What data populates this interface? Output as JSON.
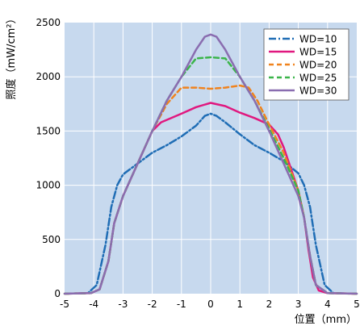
{
  "chart_data": {
    "type": "line",
    "title": "",
    "ylabel": "照度（mW/cm²）",
    "xlabel": "位置（mm）",
    "xlim": [
      -5,
      5
    ],
    "ylim": [
      0,
      2500
    ],
    "xticks": [
      -5,
      -4,
      -3,
      -2,
      -1,
      0,
      1,
      2,
      3,
      4,
      5
    ],
    "yticks": [
      0,
      500,
      1000,
      1500,
      2000,
      2500
    ],
    "grid": true,
    "background": "#c7d9ee",
    "legend_position": "top-right",
    "series": [
      {
        "name": "WD=10",
        "color": "#1f6db5",
        "dash": "dashdot",
        "points": [
          [
            -5,
            0
          ],
          [
            -4.2,
            5
          ],
          [
            -3.9,
            80
          ],
          [
            -3.6,
            450
          ],
          [
            -3.4,
            800
          ],
          [
            -3.2,
            1000
          ],
          [
            -3,
            1100
          ],
          [
            -2.5,
            1200
          ],
          [
            -2,
            1300
          ],
          [
            -1.5,
            1370
          ],
          [
            -1,
            1450
          ],
          [
            -0.5,
            1550
          ],
          [
            -0.2,
            1640
          ],
          [
            0,
            1660
          ],
          [
            0.2,
            1640
          ],
          [
            0.5,
            1580
          ],
          [
            1,
            1470
          ],
          [
            1.5,
            1370
          ],
          [
            2,
            1300
          ],
          [
            2.5,
            1220
          ],
          [
            3,
            1110
          ],
          [
            3.2,
            1000
          ],
          [
            3.4,
            800
          ],
          [
            3.6,
            450
          ],
          [
            3.9,
            80
          ],
          [
            4.2,
            5
          ],
          [
            5,
            0
          ]
        ]
      },
      {
        "name": "WD=15",
        "color": "#e0187f",
        "dash": "solid",
        "points": [
          [
            -5,
            0
          ],
          [
            -4.1,
            5
          ],
          [
            -3.8,
            40
          ],
          [
            -3.5,
            300
          ],
          [
            -3.3,
            650
          ],
          [
            -3,
            900
          ],
          [
            -2.5,
            1200
          ],
          [
            -2,
            1500
          ],
          [
            -1.7,
            1580
          ],
          [
            -1,
            1660
          ],
          [
            -0.5,
            1720
          ],
          [
            0,
            1760
          ],
          [
            0.5,
            1730
          ],
          [
            1,
            1670
          ],
          [
            1.5,
            1620
          ],
          [
            2,
            1560
          ],
          [
            2.3,
            1470
          ],
          [
            2.5,
            1350
          ],
          [
            3,
            950
          ],
          [
            3.2,
            700
          ],
          [
            3.35,
            400
          ],
          [
            3.5,
            150
          ],
          [
            3.7,
            30
          ],
          [
            4,
            5
          ],
          [
            5,
            0
          ]
        ]
      },
      {
        "name": "WD=20",
        "color": "#f0831e",
        "dash": "dashed",
        "points": [
          [
            -5,
            0
          ],
          [
            -4.1,
            5
          ],
          [
            -3.8,
            40
          ],
          [
            -3.5,
            300
          ],
          [
            -3.3,
            650
          ],
          [
            -3,
            900
          ],
          [
            -2.5,
            1200
          ],
          [
            -2,
            1500
          ],
          [
            -1.5,
            1750
          ],
          [
            -1,
            1900
          ],
          [
            -0.5,
            1900
          ],
          [
            0,
            1890
          ],
          [
            0.5,
            1900
          ],
          [
            1,
            1920
          ],
          [
            1.3,
            1900
          ],
          [
            1.6,
            1780
          ],
          [
            2,
            1560
          ],
          [
            2.5,
            1300
          ],
          [
            3,
            950
          ],
          [
            3.2,
            700
          ],
          [
            3.4,
            350
          ],
          [
            3.6,
            80
          ],
          [
            4,
            5
          ],
          [
            5,
            0
          ]
        ]
      },
      {
        "name": "WD=25",
        "color": "#3bb54a",
        "dash": "dashed",
        "points": [
          [
            -5,
            0
          ],
          [
            -4.1,
            5
          ],
          [
            -3.8,
            40
          ],
          [
            -3.5,
            300
          ],
          [
            -3.3,
            650
          ],
          [
            -3,
            900
          ],
          [
            -2.5,
            1200
          ],
          [
            -2,
            1500
          ],
          [
            -1.5,
            1780
          ],
          [
            -1,
            2000
          ],
          [
            -0.5,
            2170
          ],
          [
            0,
            2180
          ],
          [
            0.5,
            2170
          ],
          [
            1,
            2000
          ],
          [
            1.5,
            1780
          ],
          [
            2,
            1520
          ],
          [
            2.5,
            1250
          ],
          [
            3,
            950
          ],
          [
            3.2,
            700
          ],
          [
            3.4,
            350
          ],
          [
            3.6,
            80
          ],
          [
            4,
            5
          ],
          [
            5,
            0
          ]
        ]
      },
      {
        "name": "WD=30",
        "color": "#8a6db0",
        "dash": "solid",
        "points": [
          [
            -5,
            0
          ],
          [
            -4.1,
            5
          ],
          [
            -3.8,
            40
          ],
          [
            -3.5,
            300
          ],
          [
            -3.3,
            650
          ],
          [
            -3,
            900
          ],
          [
            -2.5,
            1200
          ],
          [
            -2,
            1500
          ],
          [
            -1.5,
            1780
          ],
          [
            -1,
            2000
          ],
          [
            -0.5,
            2250
          ],
          [
            -0.2,
            2370
          ],
          [
            0,
            2390
          ],
          [
            0.2,
            2370
          ],
          [
            0.5,
            2250
          ],
          [
            1,
            2000
          ],
          [
            1.5,
            1780
          ],
          [
            2,
            1500
          ],
          [
            2.5,
            1200
          ],
          [
            3,
            900
          ],
          [
            3.2,
            700
          ],
          [
            3.4,
            350
          ],
          [
            3.6,
            80
          ],
          [
            4,
            5
          ],
          [
            5,
            0
          ]
        ]
      }
    ]
  }
}
